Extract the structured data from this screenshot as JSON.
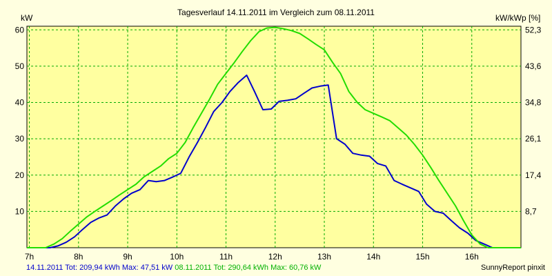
{
  "chart_data": {
    "type": "line",
    "title": "Tagesverlauf 14.11.2011 im Vergleich zum 08.11.2011",
    "ylabel_left": "kW",
    "ylabel_right": "kW/kWp [%]",
    "x_ticks": [
      "7h",
      "8h",
      "9h",
      "10h",
      "11h",
      "12h",
      "13h",
      "14h",
      "15h",
      "16h"
    ],
    "x_tick_hours": [
      7,
      8,
      9,
      10,
      11,
      12,
      13,
      14,
      15,
      16
    ],
    "xlim": [
      6.95,
      17.0
    ],
    "y_ticks_left": [
      "10",
      "20",
      "30",
      "40",
      "50",
      "60"
    ],
    "y_tick_values": [
      10,
      20,
      30,
      40,
      50,
      60
    ],
    "y_ticks_right": [
      "8,7",
      "17,4",
      "26,1",
      "34,8",
      "43,6",
      "52,3"
    ],
    "ylim": [
      0,
      61
    ],
    "grid": true,
    "series": [
      {
        "name": "14.11.2011",
        "color": "#0000cc",
        "x": [
          6.95,
          7.42,
          7.58,
          7.75,
          7.92,
          8.08,
          8.25,
          8.42,
          8.58,
          8.75,
          8.92,
          9.08,
          9.25,
          9.42,
          9.58,
          9.75,
          9.92,
          10.08,
          10.25,
          10.42,
          10.58,
          10.75,
          10.92,
          11.08,
          11.25,
          11.42,
          11.58,
          11.75,
          11.92,
          12.08,
          12.25,
          12.42,
          12.58,
          12.75,
          12.92,
          13.08,
          13.25,
          13.42,
          13.58,
          13.75,
          13.92,
          14.08,
          14.25,
          14.42,
          14.58,
          14.75,
          14.92,
          15.08,
          15.25,
          15.42,
          15.58,
          15.75,
          15.92,
          16.08,
          16.25,
          16.42,
          16.58,
          17.0
        ],
        "y": [
          0,
          0,
          0.5,
          1.5,
          3,
          5,
          7,
          8.2,
          9,
          11.5,
          13.5,
          15,
          16,
          18.5,
          18.2,
          18.5,
          19.5,
          20.5,
          25,
          29,
          33,
          37.5,
          40,
          43,
          45.5,
          47.5,
          43,
          38,
          38.2,
          40.3,
          40.6,
          41,
          42.5,
          44,
          44.5,
          44.8,
          30,
          28.5,
          26,
          25.5,
          25.2,
          23.2,
          22.5,
          18.5,
          17.5,
          16.5,
          15.5,
          12,
          10,
          9.5,
          7.5,
          5.5,
          4,
          2,
          1,
          0,
          0,
          0
        ]
      },
      {
        "name": "08.11.2011",
        "color": "#22dd00",
        "x": [
          6.95,
          7.33,
          7.5,
          7.67,
          7.83,
          8.0,
          8.17,
          8.33,
          8.5,
          8.67,
          8.83,
          9.0,
          9.17,
          9.33,
          9.5,
          9.67,
          9.83,
          10.0,
          10.17,
          10.33,
          10.5,
          10.67,
          10.83,
          11.0,
          11.17,
          11.33,
          11.5,
          11.67,
          11.83,
          12.0,
          12.17,
          12.33,
          12.5,
          12.67,
          12.83,
          13.0,
          13.17,
          13.33,
          13.5,
          13.67,
          13.83,
          14.0,
          14.17,
          14.33,
          14.5,
          14.67,
          14.83,
          15.0,
          15.17,
          15.33,
          15.5,
          15.67,
          15.83,
          16.0,
          16.17,
          16.33,
          16.5,
          16.67,
          17.0
        ],
        "y": [
          0,
          0,
          1,
          2.5,
          4.5,
          6.5,
          8.5,
          10,
          11.5,
          13,
          14.5,
          16,
          17.5,
          19.5,
          21,
          22.5,
          24.5,
          26,
          29,
          33,
          37,
          41,
          45,
          48,
          51,
          54,
          57,
          59.5,
          60.5,
          60.7,
          60.3,
          59.8,
          59,
          57.5,
          56,
          54.5,
          51,
          48,
          43,
          40,
          38,
          37,
          36,
          35,
          33,
          31,
          28.5,
          25.5,
          22,
          18.5,
          15,
          11.5,
          7.5,
          3.5,
          1,
          0,
          0,
          0,
          0
        ]
      }
    ],
    "footer_series1": "14.11.2011 Tot: 209,94 kWh Max: 47,51 kW",
    "footer_series2": "08.11.2011 Tot: 290,64 kWh Max: 60,76 kW",
    "footer_right": "SunnyReport pinxit",
    "colors": {
      "background": "#ffffe0",
      "plot_area": "#ffffa0",
      "grid": "#00aa00",
      "series1": "#0000cc",
      "series2": "#22dd00"
    }
  }
}
